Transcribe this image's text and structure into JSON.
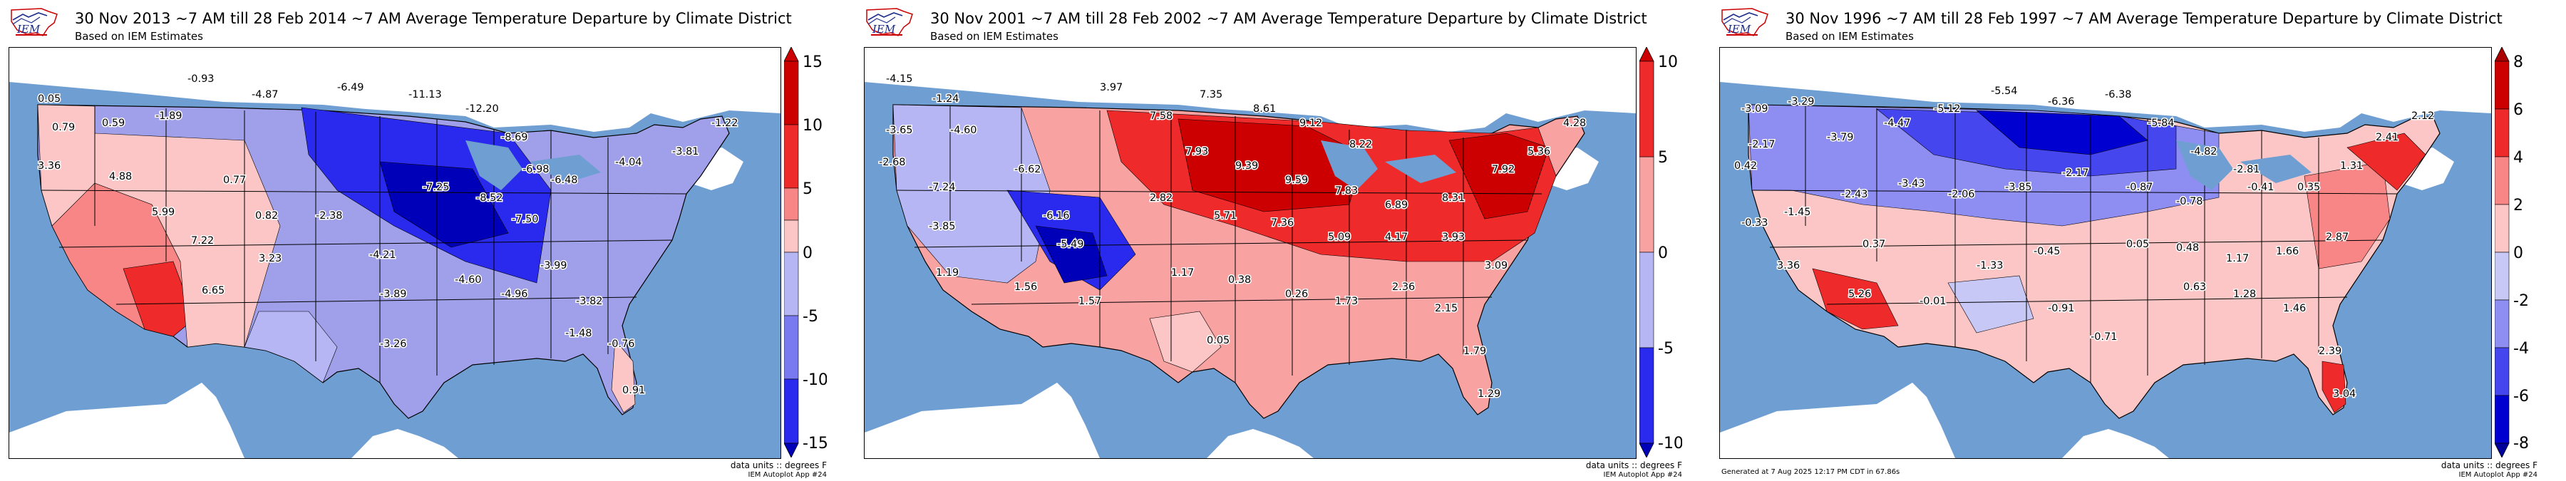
{
  "colors": {
    "ocean": "#6f9fd2",
    "land_gray": "#ffffff",
    "border": "#000000"
  },
  "panels": [
    {
      "title": "30 Nov 2013 ~7 AM till 28 Feb 2014 ~7 AM Average Temperature Departure by Climate District",
      "subtitle": "Based on IEM Estimates",
      "units": "data units :: degrees F",
      "app": "IEM Autoplot App #24",
      "footer": "",
      "colorbar": {
        "ticks": [
          "15",
          "10",
          "5",
          "0",
          "-5",
          "-10",
          "-15"
        ],
        "colors": [
          "#cc0000",
          "#ee2a2a",
          "#f98686",
          "#fcc6c6",
          "#b6b6f5",
          "#7a7af0",
          "#2a2aee",
          "#0000b8"
        ]
      }
    },
    {
      "title": "30 Nov 2001 ~7 AM till 28 Feb 2002 ~7 AM Average Temperature Departure by Climate District",
      "subtitle": "Based on IEM Estimates",
      "units": "data units :: degrees F",
      "app": "IEM Autoplot App #24",
      "footer": "",
      "colorbar": {
        "ticks": [
          "10",
          "5",
          "0",
          "-5",
          "-10"
        ],
        "colors": [
          "#cc0000",
          "#ee2a2a",
          "#f9a2a2",
          "#b6b6f5",
          "#2a2aee",
          "#0000b8"
        ]
      }
    },
    {
      "title": "30 Nov 1996 ~7 AM till 28 Feb 1997 ~7 AM Average Temperature Departure by Climate District",
      "subtitle": "Based on IEM Estimates",
      "units": "data units :: degrees F",
      "app": "IEM Autoplot App #24",
      "footer": "Generated at 7 Aug 2025 12:17 PM CDT in 67.86s",
      "colorbar": {
        "ticks": [
          "8",
          "6",
          "4",
          "2",
          "0",
          "-2",
          "-4",
          "-6",
          "-8"
        ],
        "colors": [
          "#aa0000",
          "#cc0000",
          "#ee2a2a",
          "#f98686",
          "#fcc6c6",
          "#c8c8f6",
          "#8e8ef2",
          "#4646ee",
          "#0000d0",
          "#00009a"
        ]
      }
    }
  ],
  "chart_data": [
    {
      "type": "heatmap",
      "title": "30 Nov 2013 ~7 AM till 28 Feb 2014 ~7 AM Average Temperature Departure by Climate District",
      "colorbar_range": [
        -15,
        15
      ],
      "units": "degrees F",
      "values": [
        {
          "lon": -122.0,
          "lat": 47.0,
          "v": 0.05
        },
        {
          "lon": -119.5,
          "lat": 46.2,
          "v": -0.93
        },
        {
          "lon": -121.0,
          "lat": 44.3,
          "v": 0.79
        },
        {
          "lon": -118.5,
          "lat": 43.6,
          "v": 0.59
        },
        {
          "lon": -116.0,
          "lat": 45.5,
          "v": -1.89
        },
        {
          "lon": -110.0,
          "lat": 47.0,
          "v": -4.87
        },
        {
          "lon": -107.5,
          "lat": 48.2,
          "v": -6.49
        },
        {
          "lon": -101.5,
          "lat": 47.2,
          "v": -11.13
        },
        {
          "lon": -97.0,
          "lat": 46.3,
          "v": -12.2
        },
        {
          "lon": -94.0,
          "lat": 46.0,
          "v": -8.69
        },
        {
          "lon": -89.5,
          "lat": 45.0,
          "v": -6.98
        },
        {
          "lon": -123.0,
          "lat": 40.5,
          "v": 3.36
        },
        {
          "lon": -118.5,
          "lat": 39.8,
          "v": 4.88
        },
        {
          "lon": -115.0,
          "lat": 36.0,
          "v": 5.99
        },
        {
          "lon": -112.0,
          "lat": 34.0,
          "v": 7.22
        },
        {
          "lon": -111.0,
          "lat": 32.0,
          "v": 6.65
        },
        {
          "lon": -108.0,
          "lat": 35.0,
          "v": 3.23
        },
        {
          "lon": -106.0,
          "lat": 41.0,
          "v": 0.77
        },
        {
          "lon": -104.5,
          "lat": 38.5,
          "v": 0.82
        },
        {
          "lon": -100.0,
          "lat": 40.0,
          "v": -2.38
        },
        {
          "lon": -97.0,
          "lat": 37.5,
          "v": -4.21
        },
        {
          "lon": -93.5,
          "lat": 42.0,
          "v": -7.25
        },
        {
          "lon": -89.5,
          "lat": 41.5,
          "v": -8.52
        },
        {
          "lon": -86.5,
          "lat": 40.0,
          "v": -7.5
        },
        {
          "lon": -84.0,
          "lat": 42.5,
          "v": -6.48
        },
        {
          "lon": -80.0,
          "lat": 42.0,
          "v": -4.04
        },
        {
          "lon": -74.0,
          "lat": 42.5,
          "v": -3.81
        },
        {
          "lon": -70.0,
          "lat": 44.0,
          "v": -1.22
        },
        {
          "lon": -100.0,
          "lat": 34.0,
          "v": -3.89
        },
        {
          "lon": -97.5,
          "lat": 31.0,
          "v": -3.26
        },
        {
          "lon": -92.5,
          "lat": 34.5,
          "v": -4.6
        },
        {
          "lon": -89.0,
          "lat": 33.0,
          "v": -4.96
        },
        {
          "lon": -86.0,
          "lat": 34.5,
          "v": -3.99
        },
        {
          "lon": -83.0,
          "lat": 33.0,
          "v": -3.82
        },
        {
          "lon": -81.5,
          "lat": 28.5,
          "v": -0.76
        },
        {
          "lon": -80.8,
          "lat": 26.0,
          "v": 0.91
        },
        {
          "lon": -92.0,
          "lat": 30.5,
          "v": -1.48
        }
      ]
    },
    {
      "type": "heatmap",
      "title": "30 Nov 2001 ~7 AM till 28 Feb 2002 ~7 AM Average Temperature Departure by Climate District",
      "colorbar_range": [
        -10,
        10
      ],
      "units": "degrees F",
      "values": [
        {
          "lon": -122.0,
          "lat": 47.0,
          "v": -4.15
        },
        {
          "lon": -119.5,
          "lat": 46.5,
          "v": -1.24
        },
        {
          "lon": -121.0,
          "lat": 44.0,
          "v": -3.65
        },
        {
          "lon": -117.0,
          "lat": 44.0,
          "v": -4.6
        },
        {
          "lon": -123.0,
          "lat": 40.5,
          "v": -2.68
        },
        {
          "lon": -119.5,
          "lat": 39.0,
          "v": -7.24
        },
        {
          "lon": -116.0,
          "lat": 40.0,
          "v": -3.85
        },
        {
          "lon": -113.0,
          "lat": 42.0,
          "v": -6.62
        },
        {
          "lon": -110.5,
          "lat": 41.0,
          "v": -6.16
        },
        {
          "lon": -109.0,
          "lat": 37.5,
          "v": -5.49
        },
        {
          "lon": -104.5,
          "lat": 47.0,
          "v": 3.97
        },
        {
          "lon": -101.5,
          "lat": 47.5,
          "v": 7.58
        },
        {
          "lon": -97.5,
          "lat": 48.0,
          "v": 7.35
        },
        {
          "lon": -94.5,
          "lat": 46.5,
          "v": 8.61
        },
        {
          "lon": -90.5,
          "lat": 45.5,
          "v": 9.12
        },
        {
          "lon": -87.5,
          "lat": 45.0,
          "v": 8.22
        },
        {
          "lon": -98.5,
          "lat": 43.0,
          "v": 7.93
        },
        {
          "lon": -94.5,
          "lat": 42.0,
          "v": 9.39
        },
        {
          "lon": -91.5,
          "lat": 41.0,
          "v": 9.59
        },
        {
          "lon": -87.5,
          "lat": 40.5,
          "v": 7.83
        },
        {
          "lon": -84.5,
          "lat": 41.5,
          "v": 6.89
        },
        {
          "lon": -80.5,
          "lat": 41.5,
          "v": 8.31
        },
        {
          "lon": -76.0,
          "lat": 42.5,
          "v": 7.92
        },
        {
          "lon": -73.5,
          "lat": 43.5,
          "v": 5.36
        },
        {
          "lon": -70.0,
          "lat": 44.5,
          "v": 4.28
        },
        {
          "lon": -100.0,
          "lat": 39.0,
          "v": 2.82
        },
        {
          "lon": -96.5,
          "lat": 38.5,
          "v": 5.71
        },
        {
          "lon": -92.5,
          "lat": 38.0,
          "v": 7.36
        },
        {
          "lon": -88.5,
          "lat": 37.5,
          "v": 5.09
        },
        {
          "lon": -85.0,
          "lat": 37.5,
          "v": 4.17
        },
        {
          "lon": -81.0,
          "lat": 37.5,
          "v": 3.93
        },
        {
          "lon": -78.0,
          "lat": 35.5,
          "v": 3.09
        },
        {
          "lon": -101.5,
          "lat": 35.0,
          "v": 1.17
        },
        {
          "lon": -97.5,
          "lat": 34.0,
          "v": 0.38
        },
        {
          "lon": -99.0,
          "lat": 31.0,
          "v": 0.05
        },
        {
          "lon": -94.0,
          "lat": 33.0,
          "v": 0.26
        },
        {
          "lon": -90.5,
          "lat": 33.5,
          "v": 1.73
        },
        {
          "lon": -86.5,
          "lat": 33.5,
          "v": 2.36
        },
        {
          "lon": -83.0,
          "lat": 32.5,
          "v": 2.15
        },
        {
          "lon": -81.5,
          "lat": 28.5,
          "v": 1.79
        },
        {
          "lon": -80.8,
          "lat": 26.0,
          "v": 1.29
        },
        {
          "lon": -108.0,
          "lat": 34.0,
          "v": 1.57
        },
        {
          "lon": -112.0,
          "lat": 33.5,
          "v": 1.56
        },
        {
          "lon": -115.5,
          "lat": 33.0,
          "v": 1.19
        }
      ]
    },
    {
      "type": "heatmap",
      "title": "30 Nov 1996 ~7 AM till 28 Feb 1997 ~7 AM Average Temperature Departure by Climate District",
      "colorbar_range": [
        -8,
        8
      ],
      "units": "degrees F",
      "values": [
        {
          "lon": -122.0,
          "lat": 47.0,
          "v": -3.09
        },
        {
          "lon": -119.5,
          "lat": 46.5,
          "v": -3.29
        },
        {
          "lon": -121.0,
          "lat": 44.0,
          "v": -2.17
        },
        {
          "lon": -117.5,
          "lat": 44.5,
          "v": -3.79
        },
        {
          "lon": -114.0,
          "lat": 46.5,
          "v": -4.47
        },
        {
          "lon": -110.0,
          "lat": 47.0,
          "v": -5.12
        },
        {
          "lon": -106.0,
          "lat": 48.0,
          "v": -5.54
        },
        {
          "lon": -102.0,
          "lat": 47.5,
          "v": -6.36
        },
        {
          "lon": -98.0,
          "lat": 47.0,
          "v": -6.38
        },
        {
          "lon": -94.5,
          "lat": 46.5,
          "v": -5.84
        },
        {
          "lon": -90.5,
          "lat": 45.5,
          "v": -4.82
        },
        {
          "lon": -87.5,
          "lat": 44.5,
          "v": -2.81
        },
        {
          "lon": -123.0,
          "lat": 40.5,
          "v": 0.42
        },
        {
          "lon": -119.5,
          "lat": 39.5,
          "v": -1.45
        },
        {
          "lon": -116.0,
          "lat": 38.0,
          "v": -0.33
        },
        {
          "lon": -112.5,
          "lat": 40.0,
          "v": -2.43
        },
        {
          "lon": -108.0,
          "lat": 40.5,
          "v": -3.43
        },
        {
          "lon": -104.5,
          "lat": 39.5,
          "v": -2.06
        },
        {
          "lon": -100.5,
          "lat": 41.5,
          "v": -3.85
        },
        {
          "lon": -96.5,
          "lat": 42.0,
          "v": -2.17
        },
        {
          "lon": -92.5,
          "lat": 42.0,
          "v": -0.87
        },
        {
          "lon": -88.5,
          "lat": 41.5,
          "v": -0.78
        },
        {
          "lon": -84.5,
          "lat": 42.5,
          "v": -0.41
        },
        {
          "lon": -80.0,
          "lat": 42.0,
          "v": 0.35
        },
        {
          "lon": -76.0,
          "lat": 43.0,
          "v": 1.31
        },
        {
          "lon": -72.5,
          "lat": 44.0,
          "v": 2.41
        },
        {
          "lon": -69.5,
          "lat": 45.5,
          "v": 2.12
        },
        {
          "lon": -116.0,
          "lat": 34.5,
          "v": 3.36
        },
        {
          "lon": -112.0,
          "lat": 33.0,
          "v": 5.26
        },
        {
          "lon": -110.0,
          "lat": 36.0,
          "v": 0.37
        },
        {
          "lon": -106.5,
          "lat": 34.0,
          "v": -0.01
        },
        {
          "lon": -102.0,
          "lat": 35.5,
          "v": -1.33
        },
        {
          "lon": -98.5,
          "lat": 36.5,
          "v": -0.45
        },
        {
          "lon": -97.0,
          "lat": 32.0,
          "v": -0.91
        },
        {
          "lon": -95.0,
          "lat": 29.5,
          "v": -0.71
        },
        {
          "lon": -93.0,
          "lat": 37.5,
          "v": 0.05
        },
        {
          "lon": -89.5,
          "lat": 37.5,
          "v": 0.48
        },
        {
          "lon": -86.0,
          "lat": 36.5,
          "v": 1.17
        },
        {
          "lon": -82.5,
          "lat": 36.5,
          "v": 1.66
        },
        {
          "lon": -79.0,
          "lat": 36.5,
          "v": 2.87
        },
        {
          "lon": -89.5,
          "lat": 33.0,
          "v": 0.63
        },
        {
          "lon": -86.0,
          "lat": 33.0,
          "v": 1.28
        },
        {
          "lon": -82.5,
          "lat": 32.5,
          "v": 1.46
        },
        {
          "lon": -81.5,
          "lat": 28.5,
          "v": 2.39
        },
        {
          "lon": -80.8,
          "lat": 26.0,
          "v": 3.04
        }
      ]
    }
  ]
}
